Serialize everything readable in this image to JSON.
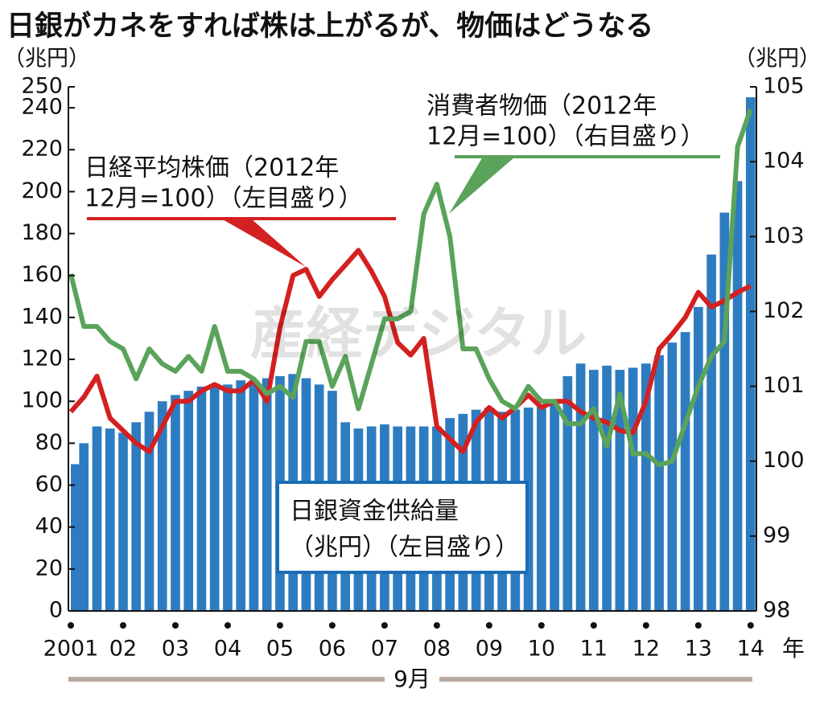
{
  "chart_data": {
    "type": "bar",
    "title": "日銀がカネをすれば株は上がるが、物価はどうなる",
    "y_unit": "（兆円）",
    "y2_unit": "（兆円）",
    "x_unit": "年",
    "x_note": "9月",
    "watermark": "産経デジタル",
    "x": [
      2001,
      2001.25,
      2001.5,
      2001.75,
      2002,
      2002.25,
      2002.5,
      2002.75,
      2003,
      2003.25,
      2003.5,
      2003.75,
      2004,
      2004.25,
      2004.5,
      2004.75,
      2005,
      2005.25,
      2005.5,
      2005.75,
      2006,
      2006.25,
      2006.5,
      2006.75,
      2007,
      2007.25,
      2007.5,
      2007.75,
      2008,
      2008.25,
      2008.5,
      2008.75,
      2009,
      2009.25,
      2009.5,
      2009.75,
      2010,
      2010.25,
      2010.5,
      2010.75,
      2011,
      2011.25,
      2011.5,
      2011.75,
      2012,
      2012.25,
      2012.5,
      2012.75,
      2013,
      2013.25,
      2013.5,
      2013.75,
      2014
    ],
    "xlim": [
      2001,
      2014.08
    ],
    "xticks": [
      2001,
      {
        "value": 2002,
        "label": "02"
      },
      {
        "value": 2003,
        "label": "03"
      },
      {
        "value": 2004,
        "label": "04"
      },
      {
        "value": 2005,
        "label": "05"
      },
      {
        "value": 2006,
        "label": "06"
      },
      {
        "value": 2007,
        "label": "07"
      },
      {
        "value": 2008,
        "label": "08"
      },
      {
        "value": 2009,
        "label": "09"
      },
      {
        "value": 2010,
        "label": "10"
      },
      {
        "value": 2011,
        "label": "11"
      },
      {
        "value": 2012,
        "label": "12"
      },
      {
        "value": 2013,
        "label": "13"
      },
      {
        "value": 2014,
        "label": "14"
      }
    ],
    "ylim": [
      0,
      250
    ],
    "yticks": [
      0,
      20,
      40,
      60,
      80,
      100,
      120,
      140,
      160,
      180,
      200,
      220,
      240,
      250
    ],
    "y2lim": [
      98,
      105
    ],
    "y2ticks": [
      98,
      99,
      100,
      101,
      102,
      103,
      104,
      105
    ],
    "series": [
      {
        "type": "bar",
        "name_lines": [
          "日銀資金供給量",
          "（兆円）（左目盛り）"
        ],
        "color": "#2e7cc0",
        "values": [
          70,
          80,
          88,
          87,
          85,
          90,
          95,
          100,
          103,
          105,
          107,
          108,
          108,
          110,
          110,
          111,
          112,
          113,
          111,
          108,
          105,
          90,
          87,
          88,
          89,
          88,
          88,
          88,
          88,
          92,
          94,
          96,
          97,
          95,
          96,
          97,
          98,
          100,
          112,
          118,
          115,
          117,
          115,
          116,
          118,
          122,
          128,
          133,
          145,
          170,
          190,
          205,
          245
        ]
      },
      {
        "type": "line",
        "name_lines": [
          "日経平均株価（2012年",
          "12月=100）（左目盛り）"
        ],
        "color": "#d42020",
        "values": [
          95,
          102,
          112,
          92,
          86,
          80,
          76,
          88,
          100,
          100,
          105,
          108,
          105,
          105,
          110,
          100,
          135,
          160,
          163,
          150,
          158,
          165,
          172,
          162,
          150,
          128,
          122,
          130,
          88,
          82,
          76,
          90,
          97,
          92,
          97,
          103,
          97,
          100,
          100,
          95,
          92,
          90,
          86,
          85,
          100,
          125,
          132,
          140,
          152,
          145,
          148,
          152,
          155
        ]
      },
      {
        "type": "line",
        "axis": "y2",
        "name_lines": [
          "消費者物価（2012年",
          "12月=100）（右目盛り）"
        ],
        "color": "#5aa35a",
        "values": [
          102.5,
          101.8,
          101.8,
          101.6,
          101.5,
          101.1,
          101.5,
          101.3,
          101.2,
          101.4,
          101.2,
          101.8,
          101.2,
          101.2,
          101.1,
          100.9,
          101.0,
          100.85,
          101.6,
          101.6,
          101.0,
          101.4,
          100.7,
          101.3,
          101.9,
          101.9,
          102.0,
          103.3,
          103.7,
          103.0,
          101.5,
          101.5,
          101.1,
          100.8,
          100.7,
          101.0,
          100.8,
          100.8,
          100.5,
          100.5,
          100.7,
          100.2,
          100.9,
          100.1,
          100.1,
          99.95,
          100.0,
          100.5,
          101.0,
          101.4,
          101.6,
          104.2,
          104.7
        ]
      }
    ]
  }
}
